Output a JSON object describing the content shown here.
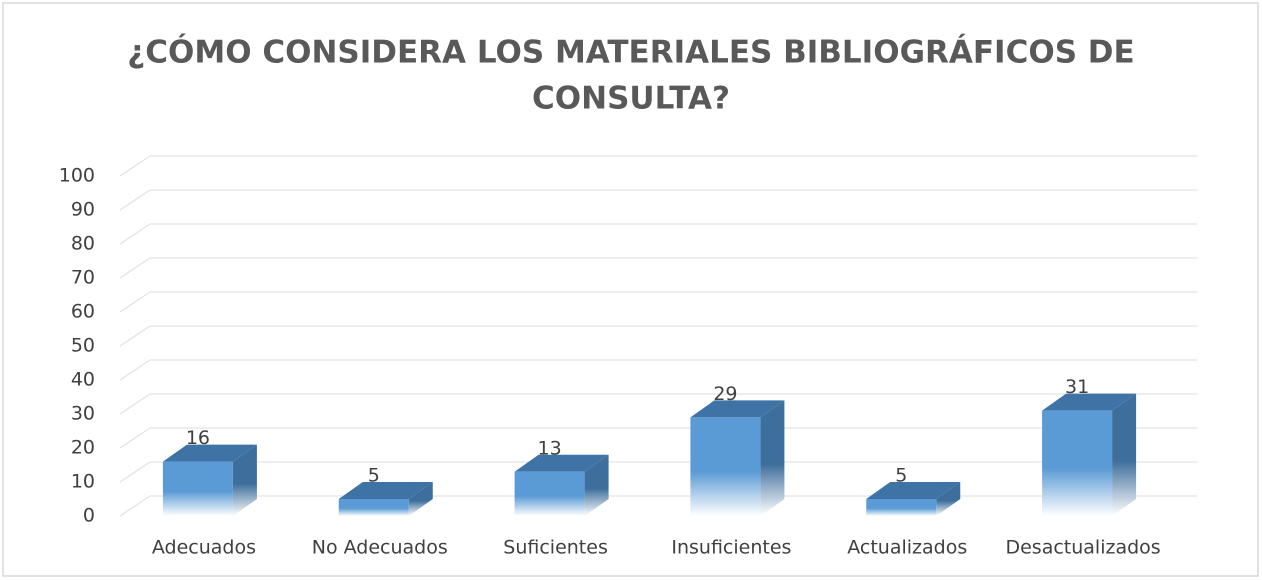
{
  "chart_data": {
    "type": "bar3d",
    "title_lines": [
      "¿CÓMO CONSIDERA LOS MATERIALES BIBLIOGRÁFICOS DE",
      "CONSULTA?"
    ],
    "categories": [
      "Adecuados",
      "No Adecuados",
      "Suficientes",
      "Insuficientes",
      "Actualizados",
      "Desactualizados"
    ],
    "values": [
      16,
      5,
      13,
      29,
      5,
      31
    ],
    "color": "#5b9bd5",
    "ylim": [
      0,
      100
    ],
    "yticks": [
      0,
      10,
      20,
      30,
      40,
      50,
      60,
      70,
      80,
      90,
      100
    ],
    "grid": true
  }
}
